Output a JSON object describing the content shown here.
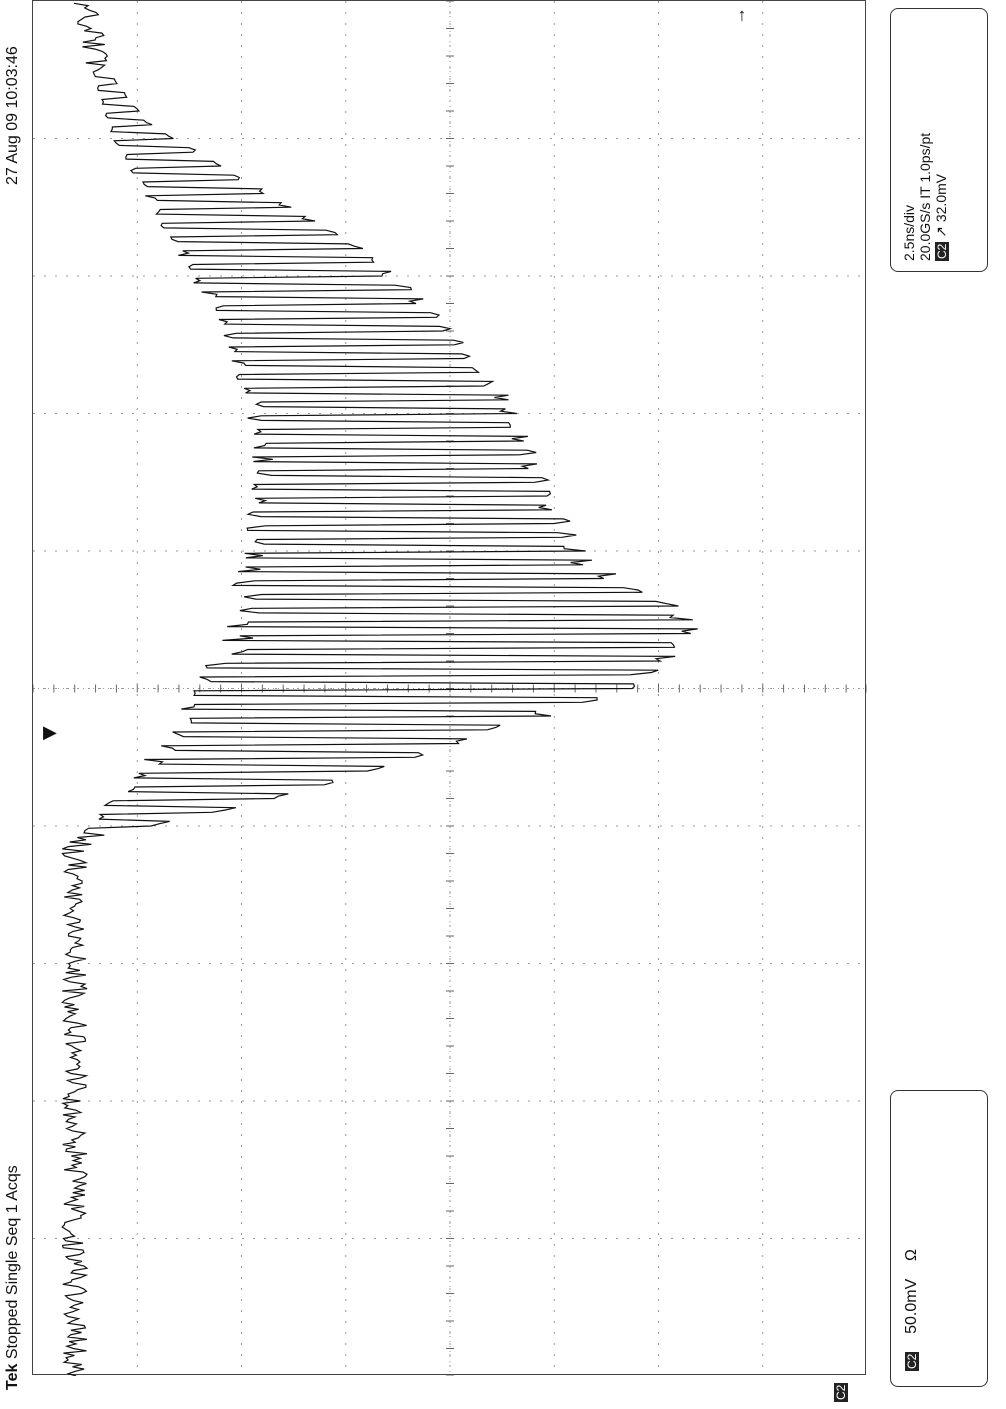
{
  "header": {
    "brand": "Tek",
    "status": "Stopped Single Seq 1 Acqs",
    "datetime": "27 Aug 09 10:03:46"
  },
  "channel_box": {
    "channel_badge": "C2",
    "scale": "50.0mV",
    "impedance": "Ω"
  },
  "timebase_box": {
    "time_per_div": "2.5ns/div",
    "sample_rate": "20.0GS/s IT 1.0ps/pt",
    "trigger_badge": "C2",
    "trigger_slope": "↗",
    "trigger_level": "32.0mV"
  },
  "markers": {
    "ground_marker": "C2",
    "trigger_position_icon": "triangle-down-icon",
    "trigger_level_icon": "arrow-left-icon"
  },
  "colors": {
    "trace": "#111111",
    "grid": "#9a9a9a",
    "background": "#ffffff"
  },
  "chart_data": {
    "type": "line",
    "title": "",
    "xlabel": "",
    "ylabel": "",
    "grid": true,
    "divisions": {
      "time": 10,
      "voltage": 8
    },
    "time_per_div_ns": 2.5,
    "volts_per_div_mV": 50,
    "xlim_ns": [
      0,
      25
    ],
    "ylim_mV": [
      -20,
      380
    ],
    "series": [
      {
        "envelope_top_mV": [
          [
            0,
            2
          ],
          [
            9.6,
            2
          ],
          [
            9.8,
            10
          ],
          [
            10.4,
            90
          ],
          [
            11.4,
            180
          ],
          [
            12.5,
            270
          ],
          [
            13.4,
            300
          ],
          [
            14.0,
            300
          ],
          [
            14.8,
            250
          ],
          [
            16.0,
            230
          ],
          [
            17.5,
            215
          ],
          [
            19.0,
            185
          ],
          [
            20.5,
            140
          ],
          [
            21.8,
            80
          ],
          [
            22.8,
            35
          ],
          [
            23.8,
            15
          ],
          [
            25,
            8
          ]
        ],
        "envelope_bottom_mV": [
          [
            0,
            -2
          ],
          [
            9.6,
            -2
          ],
          [
            10.4,
            15
          ],
          [
            11.5,
            40
          ],
          [
            12.5,
            55
          ],
          [
            13.5,
            70
          ],
          [
            15.0,
            80
          ],
          [
            17.0,
            85
          ],
          [
            19.0,
            70
          ],
          [
            21.0,
            40
          ],
          [
            22.5,
            18
          ],
          [
            23.8,
            8
          ],
          [
            25,
            2
          ]
        ],
        "carrier_period_ns": 0.25
      }
    ]
  }
}
